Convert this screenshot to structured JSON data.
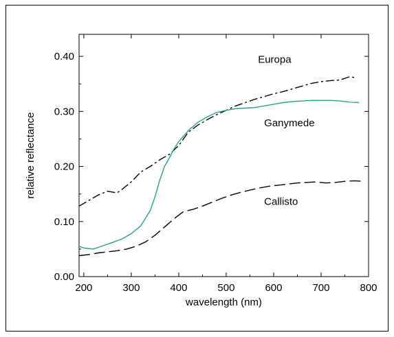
{
  "chart_data": {
    "type": "line",
    "title": "",
    "xlabel": "wavelength (nm)",
    "ylabel": "relative reflectance",
    "xlim": [
      190,
      800
    ],
    "ylim": [
      0.0,
      0.44
    ],
    "xticks": [
      200,
      300,
      400,
      500,
      600,
      700,
      800
    ],
    "yticks": [
      0.0,
      0.1,
      0.2,
      0.3,
      0.4
    ],
    "xtick_labels": [
      "200",
      "300",
      "400",
      "500",
      "600",
      "700",
      "800"
    ],
    "ytick_labels": [
      "0.00",
      "0.10",
      "0.20",
      "0.30",
      "0.40"
    ],
    "grid": false,
    "legend": "none (direct labels)",
    "series": [
      {
        "name": "Europa",
        "style": "dash-dot",
        "color": "#000000",
        "x": [
          190,
          210,
          230,
          250,
          270,
          280,
          300,
          320,
          340,
          360,
          380,
          400,
          420,
          440,
          460,
          480,
          500,
          520,
          540,
          560,
          580,
          600,
          620,
          640,
          660,
          680,
          700,
          720,
          740,
          760,
          775
        ],
        "y": [
          0.128,
          0.138,
          0.148,
          0.155,
          0.152,
          0.158,
          0.172,
          0.19,
          0.2,
          0.212,
          0.222,
          0.238,
          0.262,
          0.275,
          0.285,
          0.294,
          0.302,
          0.31,
          0.316,
          0.322,
          0.327,
          0.332,
          0.336,
          0.341,
          0.346,
          0.351,
          0.354,
          0.356,
          0.357,
          0.363,
          0.361
        ]
      },
      {
        "name": "Ganymede",
        "style": "solid",
        "color": "#2a9d8f",
        "x": [
          190,
          200,
          220,
          240,
          260,
          280,
          300,
          320,
          340,
          350,
          360,
          370,
          380,
          390,
          400,
          420,
          440,
          460,
          480,
          500,
          520,
          540,
          560,
          580,
          600,
          620,
          640,
          660,
          680,
          700,
          720,
          740,
          760,
          780
        ],
        "y": [
          0.055,
          0.052,
          0.05,
          0.056,
          0.062,
          0.068,
          0.078,
          0.092,
          0.12,
          0.145,
          0.175,
          0.2,
          0.215,
          0.232,
          0.245,
          0.265,
          0.28,
          0.29,
          0.298,
          0.302,
          0.305,
          0.306,
          0.307,
          0.31,
          0.313,
          0.316,
          0.318,
          0.319,
          0.32,
          0.32,
          0.32,
          0.319,
          0.317,
          0.316
        ]
      },
      {
        "name": "Callisto",
        "style": "dashed",
        "color": "#000000",
        "x": [
          190,
          210,
          230,
          250,
          270,
          290,
          310,
          330,
          350,
          370,
          390,
          410,
          430,
          450,
          470,
          490,
          510,
          530,
          550,
          570,
          590,
          610,
          630,
          650,
          670,
          690,
          710,
          730,
          750,
          770,
          790
        ],
        "y": [
          0.038,
          0.04,
          0.043,
          0.045,
          0.047,
          0.05,
          0.055,
          0.063,
          0.075,
          0.09,
          0.105,
          0.118,
          0.122,
          0.128,
          0.135,
          0.142,
          0.148,
          0.153,
          0.157,
          0.161,
          0.164,
          0.166,
          0.168,
          0.17,
          0.171,
          0.172,
          0.17,
          0.171,
          0.173,
          0.174,
          0.173
        ]
      }
    ],
    "annotations": [
      {
        "text": "Europa",
        "series": "Europa"
      },
      {
        "text": "Ganymede",
        "series": "Ganymede"
      },
      {
        "text": "Callisto",
        "series": "Callisto"
      }
    ]
  }
}
